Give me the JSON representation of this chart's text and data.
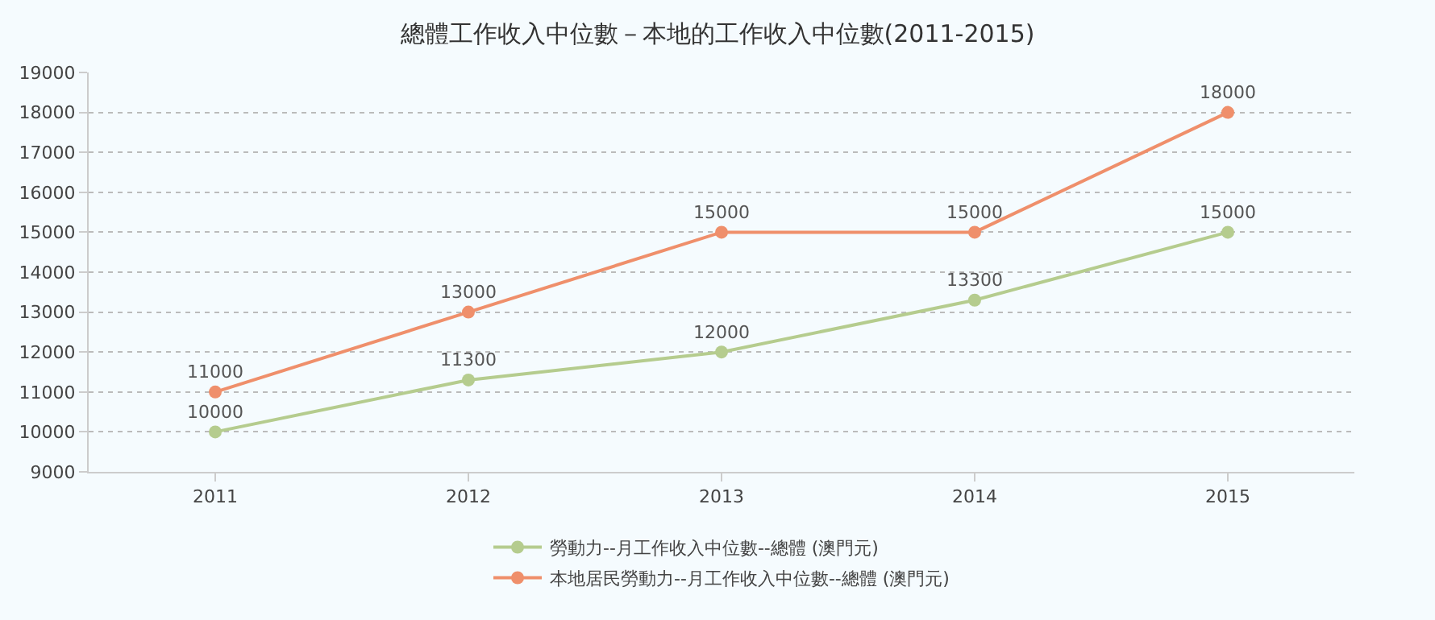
{
  "chart_data": {
    "type": "line",
    "title": "總體工作收入中位數－本地的工作收入中位數(2011-2015)",
    "categories": [
      "2011",
      "2012",
      "2013",
      "2014",
      "2015"
    ],
    "series": [
      {
        "name": "勞動力--月工作收入中位數--總體 (澳門元)",
        "color": "#b5cc8e",
        "values": [
          10000,
          11300,
          12000,
          13300,
          15000
        ]
      },
      {
        "name": "本地居民勞動力--月工作收入中位數--總體 (澳門元)",
        "color": "#ef8f6b",
        "values": [
          11000,
          13000,
          15000,
          15000,
          18000
        ]
      }
    ],
    "ylim": [
      9000,
      19000
    ],
    "yticks": [
      9000,
      10000,
      11000,
      12000,
      13000,
      14000,
      15000,
      16000,
      17000,
      18000,
      19000
    ],
    "grid": "y",
    "legend": "bottom",
    "marker": "circle",
    "line_style": "solid",
    "data_labels": true
  }
}
